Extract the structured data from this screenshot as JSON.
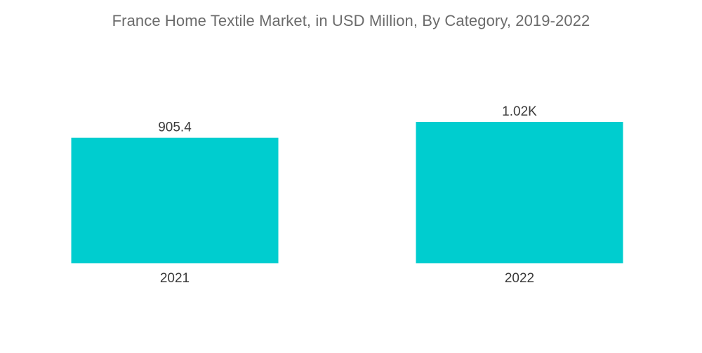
{
  "chart_data": {
    "type": "bar",
    "title": "France Home Textile Market, in USD Million, By Category, 2019-2022",
    "categories": [
      "2021",
      "2022"
    ],
    "values": [
      905.4,
      1020
    ],
    "value_labels": [
      "905.4",
      "1.02K"
    ],
    "xlabel": "",
    "ylabel": "",
    "ylim": [
      0,
      1020
    ],
    "grid": false,
    "legend": "none",
    "bar_color": "#00CDCF"
  }
}
